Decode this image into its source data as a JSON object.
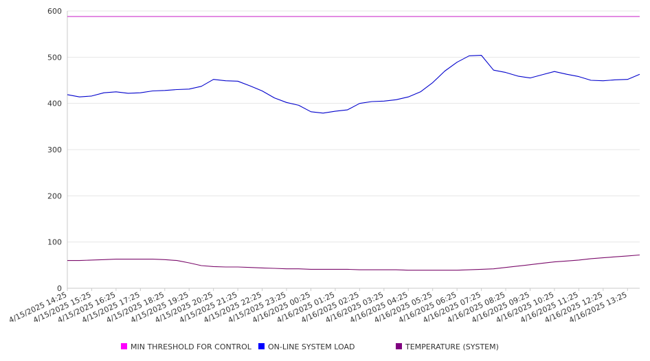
{
  "chart_data": {
    "type": "line",
    "title": "",
    "xlabel": "",
    "ylabel": "",
    "ylim": [
      0,
      600
    ],
    "y_ticks": [
      0,
      100,
      200,
      300,
      400,
      500,
      600
    ],
    "grid": "horizontal",
    "legend_position": "bottom",
    "x_tick_labels": [
      "4/15/2025 14:25",
      "4/15/2025 15:25",
      "4/15/2025 16:25",
      "4/15/2025 17:25",
      "4/15/2025 18:25",
      "4/15/2025 19:25",
      "4/15/2025 20:25",
      "4/15/2025 21:25",
      "4/15/2025 22:25",
      "4/15/2025 23:25",
      "4/16/2025 00:25",
      "4/16/2025 01:25",
      "4/16/2025 02:25",
      "4/16/2025 03:25",
      "4/16/2025 04:25",
      "4/16/2025 05:25",
      "4/16/2025 06:25",
      "4/16/2025 07:25",
      "4/16/2025 08:25",
      "4/16/2025 09:25",
      "4/16/2025 10:25",
      "4/16/2025 11:25",
      "4/16/2025 12:25",
      "4/16/2025 13:25"
    ],
    "x": [
      "4/15/2025 14:25",
      "4/15/2025 14:55",
      "4/15/2025 15:25",
      "4/15/2025 15:55",
      "4/15/2025 16:25",
      "4/15/2025 16:55",
      "4/15/2025 17:25",
      "4/15/2025 17:55",
      "4/15/2025 18:25",
      "4/15/2025 18:55",
      "4/15/2025 19:25",
      "4/15/2025 19:55",
      "4/15/2025 20:25",
      "4/15/2025 20:55",
      "4/15/2025 21:25",
      "4/15/2025 21:55",
      "4/15/2025 22:25",
      "4/15/2025 22:55",
      "4/15/2025 23:25",
      "4/15/2025 23:55",
      "4/16/2025 00:25",
      "4/16/2025 00:55",
      "4/16/2025 01:25",
      "4/16/2025 01:55",
      "4/16/2025 02:25",
      "4/16/2025 02:55",
      "4/16/2025 03:25",
      "4/16/2025 03:55",
      "4/16/2025 04:25",
      "4/16/2025 04:55",
      "4/16/2025 05:25",
      "4/16/2025 05:55",
      "4/16/2025 06:25",
      "4/16/2025 06:55",
      "4/16/2025 07:25",
      "4/16/2025 07:55",
      "4/16/2025 08:25",
      "4/16/2025 08:55",
      "4/16/2025 09:25",
      "4/16/2025 09:55",
      "4/16/2025 10:25",
      "4/16/2025 10:55",
      "4/16/2025 11:25",
      "4/16/2025 11:55",
      "4/16/2025 12:25",
      "4/16/2025 12:55",
      "4/16/2025 13:25",
      "4/16/2025 13:55"
    ],
    "series": [
      {
        "name": "MIN THRESHOLD FOR CONTROL",
        "color": "#cc33cc",
        "legend_color": "#ff00ff",
        "values": [
          588,
          588,
          588,
          588,
          588,
          588,
          588,
          588,
          588,
          588,
          588,
          588,
          588,
          588,
          588,
          588,
          588,
          588,
          588,
          588,
          588,
          588,
          588,
          588,
          588,
          588,
          588,
          588,
          588,
          588,
          588,
          588,
          588,
          588,
          588,
          588,
          588,
          588,
          588,
          588,
          588,
          588,
          588,
          588,
          588,
          588,
          588,
          588
        ]
      },
      {
        "name": "ON-LINE SYSTEM LOAD",
        "color": "#0000cc",
        "legend_color": "#0000ff",
        "values": [
          419,
          414,
          416,
          423,
          425,
          422,
          423,
          427,
          428,
          430,
          431,
          437,
          452,
          449,
          448,
          438,
          427,
          412,
          402,
          396,
          382,
          379,
          383,
          386,
          400,
          404,
          405,
          408,
          414,
          425,
          445,
          470,
          489,
          503,
          504,
          472,
          467,
          459,
          455,
          462,
          469,
          463,
          458,
          450,
          449,
          451,
          452,
          463
        ]
      },
      {
        "name": "TEMPERATURE (SYSTEM)",
        "color": "#7a0a6a",
        "legend_color": "#800080",
        "values": [
          60,
          60,
          61,
          62,
          63,
          63,
          63,
          63,
          62,
          60,
          55,
          49,
          47,
          46,
          46,
          45,
          44,
          43,
          42,
          42,
          41,
          41,
          41,
          41,
          40,
          40,
          40,
          40,
          39,
          39,
          39,
          39,
          39,
          40,
          41,
          42,
          45,
          48,
          51,
          54,
          57,
          59,
          61,
          64,
          66,
          68,
          70,
          72
        ]
      }
    ]
  }
}
